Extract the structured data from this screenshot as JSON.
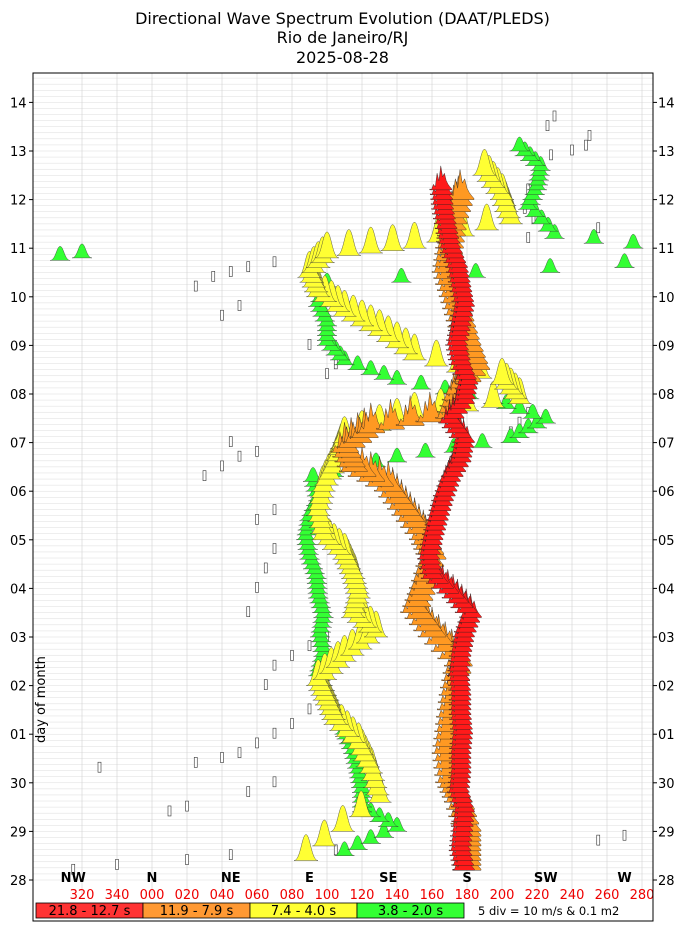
{
  "title_lines": [
    "Directional Wave Spectrum Evolution (DAAT/PLEDS)",
    "Rio de Janeiro/RJ",
    "2025-08-28"
  ],
  "chart_data": {
    "type": "scatter",
    "ylabel": "day of month",
    "y_ticks": [
      "28",
      "29",
      "30",
      "01",
      "02",
      "03",
      "04",
      "05",
      "06",
      "07",
      "08",
      "09",
      "10",
      "11",
      "12",
      "13",
      "14"
    ],
    "compass_labels": [
      {
        "label": "NW",
        "deg": 315
      },
      {
        "label": "N",
        "deg": 0
      },
      {
        "label": "NE",
        "deg": 45
      },
      {
        "label": "E",
        "deg": 90
      },
      {
        "label": "SE",
        "deg": 135
      },
      {
        "label": "S",
        "deg": 180
      },
      {
        "label": "SW",
        "deg": 225
      },
      {
        "label": "W",
        "deg": 270
      }
    ],
    "direction_ticks": [
      "320",
      "340",
      "000",
      "020",
      "040",
      "060",
      "080",
      "100",
      "120",
      "140",
      "160",
      "180",
      "200",
      "220",
      "240",
      "260",
      "280"
    ],
    "direction_start_deg": 300,
    "direction_end_deg": 300,
    "period_bands": [
      {
        "label": "21.8 - 12.7 s",
        "color": "#ff3333"
      },
      {
        "label": "11.9 - 7.9 s",
        "color": "#ff9933"
      },
      {
        "label": "7.4 - 4.0 s",
        "color": "#ffff33"
      },
      {
        "label": "3.8 - 2.0 s",
        "color": "#33ff33"
      }
    ],
    "scale_note": "5 div = 10 m/s & 0.1 m2",
    "swell_red": [
      [
        28.2,
        178
      ],
      [
        28.6,
        176
      ],
      [
        29.0,
        177
      ],
      [
        29.4,
        178
      ],
      [
        29.8,
        175
      ],
      [
        30.2,
        176
      ],
      [
        30.6,
        176
      ],
      [
        31.0,
        177
      ],
      [
        31.4,
        176
      ],
      [
        31.8,
        176
      ],
      [
        32.2,
        175
      ],
      [
        32.6,
        176
      ],
      [
        33.0,
        178
      ],
      [
        33.4,
        182
      ],
      [
        33.8,
        172
      ],
      [
        34.2,
        160
      ],
      [
        34.6,
        158
      ],
      [
        35.0,
        160
      ],
      [
        35.4,
        163
      ],
      [
        35.8,
        166
      ],
      [
        36.2,
        170
      ],
      [
        36.6,
        176
      ],
      [
        37.0,
        178
      ],
      [
        37.4,
        170
      ],
      [
        37.8,
        178
      ],
      [
        38.2,
        180
      ],
      [
        38.6,
        176
      ],
      [
        39.0,
        174
      ],
      [
        39.4,
        176
      ],
      [
        39.8,
        178
      ],
      [
        40.2,
        176
      ],
      [
        40.6,
        174
      ],
      [
        41.0,
        170
      ],
      [
        41.4,
        168
      ],
      [
        41.8,
        166
      ],
      [
        42.2,
        165
      ]
    ],
    "swell_orange": [
      [
        28.2,
        180
      ],
      [
        28.6,
        180
      ],
      [
        29.0,
        180
      ],
      [
        29.6,
        175
      ],
      [
        30.0,
        170
      ],
      [
        30.6,
        168
      ],
      [
        31.2,
        170
      ],
      [
        31.8,
        172
      ],
      [
        32.4,
        175
      ],
      [
        33.0,
        160
      ],
      [
        33.5,
        150
      ],
      [
        34.0,
        155
      ],
      [
        34.6,
        160
      ],
      [
        35.0,
        155
      ],
      [
        35.5,
        145
      ],
      [
        36.0,
        135
      ],
      [
        36.4,
        115
      ],
      [
        36.8,
        110
      ],
      [
        37.2,
        125
      ],
      [
        37.5,
        170
      ],
      [
        38.0,
        175
      ],
      [
        38.5,
        185
      ],
      [
        39.0,
        180
      ],
      [
        39.5,
        176
      ],
      [
        40.0,
        172
      ],
      [
        40.5,
        168
      ],
      [
        41.0,
        170
      ],
      [
        41.5,
        172
      ],
      [
        42.0,
        176
      ]
    ],
    "wind_yellow": [
      [
        28.4,
        88
      ],
      [
        29.6,
        130
      ],
      [
        30.2,
        125
      ],
      [
        30.7,
        118
      ],
      [
        31.2,
        105
      ],
      [
        31.6,
        100
      ],
      [
        32.0,
        95
      ],
      [
        32.5,
        110
      ],
      [
        33.0,
        128
      ],
      [
        33.4,
        115
      ],
      [
        33.8,
        118
      ],
      [
        34.2,
        115
      ],
      [
        34.6,
        110
      ],
      [
        35.0,
        98
      ],
      [
        35.5,
        95
      ],
      [
        36.0,
        98
      ],
      [
        36.5,
        105
      ],
      [
        37.0,
        110
      ],
      [
        37.5,
        150
      ],
      [
        37.8,
        210
      ],
      [
        38.2,
        200
      ],
      [
        38.7,
        150
      ],
      [
        39.2,
        130
      ],
      [
        39.6,
        110
      ],
      [
        40.0,
        95
      ],
      [
        40.4,
        90
      ],
      [
        40.8,
        100
      ],
      [
        41.0,
        150
      ],
      [
        41.5,
        205
      ],
      [
        42.0,
        200
      ],
      [
        42.5,
        190
      ]
    ],
    "wind_green": [
      [
        28.5,
        110
      ],
      [
        29.0,
        140
      ],
      [
        29.4,
        120
      ],
      [
        29.8,
        120
      ],
      [
        30.2,
        118
      ],
      [
        30.6,
        115
      ],
      [
        31.0,
        110
      ],
      [
        31.4,
        105
      ],
      [
        31.8,
        100
      ],
      [
        32.2,
        95
      ],
      [
        32.6,
        98
      ],
      [
        33.0,
        96
      ],
      [
        33.4,
        98
      ],
      [
        33.8,
        95
      ],
      [
        34.2,
        94
      ],
      [
        34.6,
        90
      ],
      [
        35.0,
        88
      ],
      [
        35.4,
        90
      ],
      [
        35.8,
        95
      ],
      [
        36.2,
        92
      ],
      [
        36.6,
        140
      ],
      [
        37.0,
        205
      ],
      [
        37.4,
        225
      ],
      [
        37.8,
        195
      ],
      [
        38.2,
        140
      ],
      [
        38.6,
        110
      ],
      [
        39.0,
        100
      ],
      [
        39.4,
        100
      ],
      [
        39.8,
        95
      ],
      [
        40.2,
        100
      ],
      [
        40.6,
        270
      ],
      [
        40.8,
        320
      ],
      [
        41.2,
        230
      ],
      [
        41.8,
        215
      ],
      [
        42.2,
        220
      ],
      [
        42.6,
        222
      ],
      [
        43.0,
        210
      ]
    ],
    "wind_markers": [
      [
        28.2,
        315
      ],
      [
        28.3,
        340
      ],
      [
        28.4,
        20
      ],
      [
        28.5,
        45
      ],
      [
        28.6,
        88
      ],
      [
        28.6,
        105
      ],
      [
        28.8,
        255
      ],
      [
        28.9,
        270
      ],
      [
        29.4,
        10
      ],
      [
        29.5,
        20
      ],
      [
        29.8,
        55
      ],
      [
        30.0,
        70
      ],
      [
        30.3,
        330
      ],
      [
        30.4,
        25
      ],
      [
        30.5,
        40
      ],
      [
        30.6,
        50
      ],
      [
        30.8,
        60
      ],
      [
        31.0,
        70
      ],
      [
        31.2,
        80
      ],
      [
        31.5,
        90
      ],
      [
        32.0,
        65
      ],
      [
        32.4,
        70
      ],
      [
        32.6,
        80
      ],
      [
        32.8,
        90
      ],
      [
        33.0,
        100
      ],
      [
        33.5,
        55
      ],
      [
        34.0,
        60
      ],
      [
        34.4,
        65
      ],
      [
        34.8,
        70
      ],
      [
        35.4,
        60
      ],
      [
        35.6,
        70
      ],
      [
        36.3,
        30
      ],
      [
        36.5,
        40
      ],
      [
        36.7,
        50
      ],
      [
        36.8,
        60
      ],
      [
        37.0,
        45
      ],
      [
        37.2,
        205
      ],
      [
        37.4,
        210
      ],
      [
        37.6,
        215
      ],
      [
        38.4,
        100
      ],
      [
        38.6,
        105
      ],
      [
        39.0,
        90
      ],
      [
        39.6,
        40
      ],
      [
        39.8,
        50
      ],
      [
        40.2,
        25
      ],
      [
        40.4,
        35
      ],
      [
        40.5,
        45
      ],
      [
        40.6,
        55
      ],
      [
        40.7,
        70
      ],
      [
        41.2,
        215
      ],
      [
        41.4,
        255
      ],
      [
        41.6,
        218
      ],
      [
        41.8,
        213
      ],
      [
        42.0,
        218
      ],
      [
        42.2,
        215
      ],
      [
        42.6,
        220
      ],
      [
        42.9,
        228
      ],
      [
        43.0,
        240
      ],
      [
        43.1,
        248
      ],
      [
        43.3,
        250
      ],
      [
        43.5,
        226
      ],
      [
        43.7,
        230
      ]
    ]
  }
}
